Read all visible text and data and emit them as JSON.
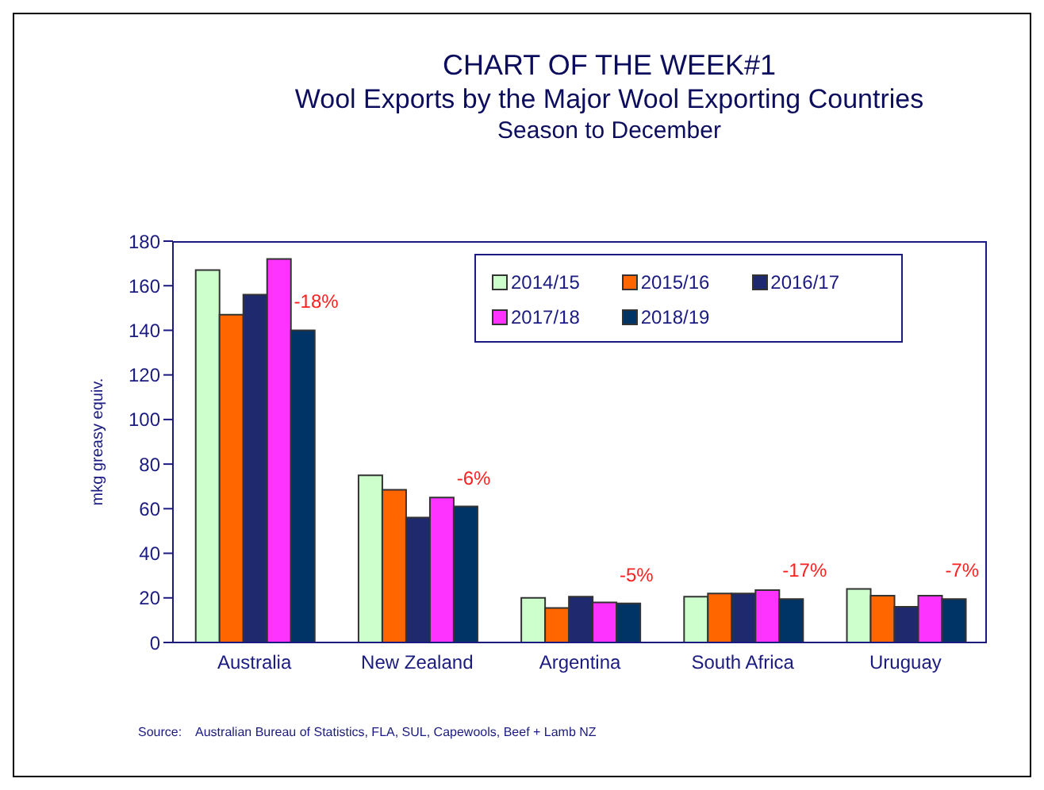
{
  "chart_data": {
    "type": "bar",
    "title": "CHART OF THE WEEK#1",
    "subtitle": "Wool Exports by the Major Wool Exporting Countries\nSeason to December",
    "ylabel": "mkg greasy equiv.",
    "categories": [
      "Australia",
      "New Zealand",
      "Argentina",
      "South Africa",
      "Uruguay"
    ],
    "series": [
      {
        "name": "2014/15",
        "color": "#ccffcc",
        "values": [
          167,
          75,
          20,
          20.5,
          24
        ]
      },
      {
        "name": "2015/16",
        "color": "#ff6600",
        "values": [
          147,
          68.5,
          15.5,
          22,
          21
        ]
      },
      {
        "name": "2016/17",
        "color": "#1f2a6e",
        "values": [
          156,
          56,
          20.5,
          22,
          16
        ]
      },
      {
        "name": "2017/18",
        "color": "#ff33ff",
        "values": [
          172,
          65,
          18,
          23.5,
          21
        ]
      },
      {
        "name": "2018/19",
        "color": "#003366",
        "values": [
          140,
          61,
          17.5,
          19.5,
          19.5
        ]
      }
    ],
    "ylim": [
      0,
      180
    ],
    "yticks": [
      0,
      20,
      40,
      60,
      80,
      100,
      120,
      140,
      160,
      180
    ],
    "grid": false,
    "legend": "top right",
    "annotations": [
      "-18%",
      "-6%",
      "-5%",
      "-17%",
      "-7%",
      "Source:    Australian Bureau of Statistics, FLA, SUL, Capewools, Beef + Lamb NZ"
    ]
  }
}
